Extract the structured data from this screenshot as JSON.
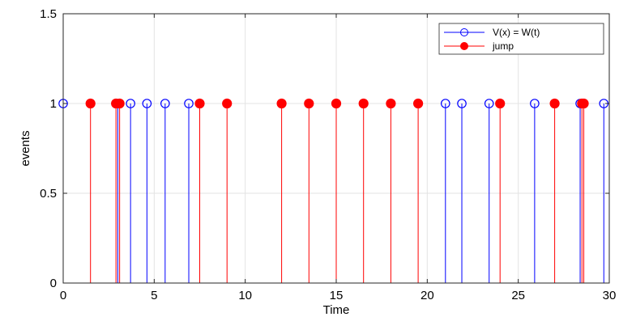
{
  "chart_data": {
    "type": "stem",
    "title": "",
    "xlabel": "Time",
    "ylabel": "events",
    "xlim": [
      0,
      30
    ],
    "ylim": [
      0,
      1.5
    ],
    "x_ticks": [
      "0",
      "5",
      "10",
      "15",
      "20",
      "25",
      "30"
    ],
    "y_ticks": [
      "0",
      "0.5",
      "1",
      "1.5"
    ],
    "grid": true,
    "legend_position": "top-right",
    "series": [
      {
        "name": "V(x) = W(t)",
        "color": "#0000ff",
        "marker": "open-circle",
        "x": [
          0.0,
          3.0,
          3.7,
          4.6,
          5.6,
          6.9,
          21.0,
          21.9,
          23.4,
          25.9,
          28.4,
          29.7
        ],
        "y": [
          1,
          1,
          1,
          1,
          1,
          1,
          1,
          1,
          1,
          1,
          1,
          1
        ]
      },
      {
        "name": "jump",
        "color": "#ff0000",
        "marker": "filled-circle",
        "x": [
          1.5,
          2.9,
          3.1,
          7.5,
          9.0,
          12.0,
          13.5,
          15.0,
          16.5,
          18.0,
          19.5,
          24.0,
          27.0,
          28.5,
          28.6
        ],
        "y": [
          1,
          1,
          1,
          1,
          1,
          1,
          1,
          1,
          1,
          1,
          1,
          1,
          1,
          1,
          1
        ]
      }
    ]
  }
}
